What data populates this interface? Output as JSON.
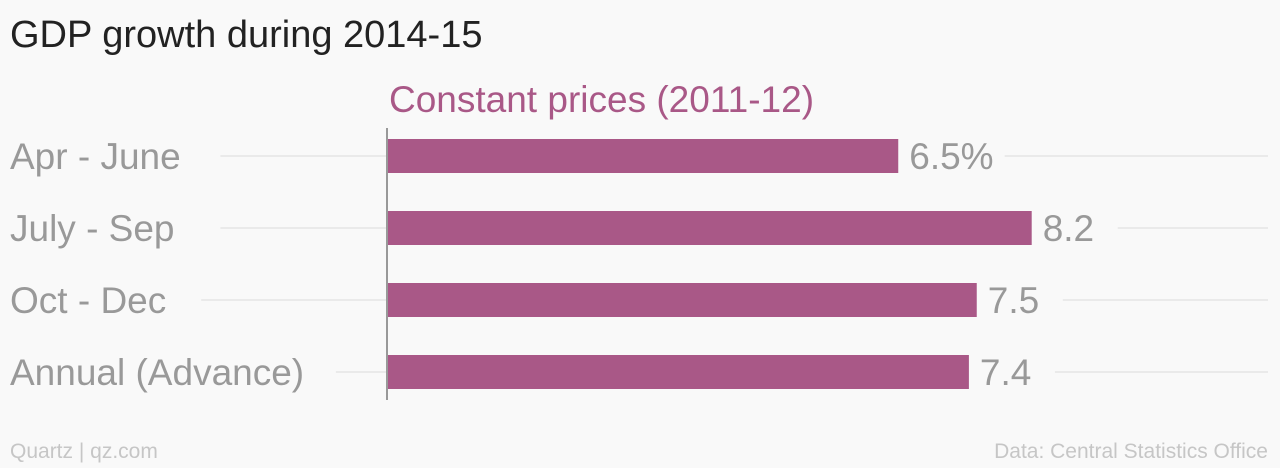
{
  "title": "GDP growth during 2014-15",
  "footer": {
    "source_brand": "Quartz | qz.com",
    "data_source": "Data: Central Statistics Office"
  },
  "colors": {
    "bar": "#a95887",
    "series_label": "#a95887",
    "category_text": "#999999",
    "value_text": "#999999",
    "gridline": "#e6e6e6",
    "axis": "#999999"
  },
  "chart_data": {
    "type": "bar",
    "orientation": "horizontal",
    "categories": [
      "Apr - June",
      "July - Sep",
      "Oct - Dec",
      "Annual (Advance)"
    ],
    "series": [
      {
        "name": "Constant prices (2011-12)",
        "values": [
          6.5,
          8.2,
          7.5,
          7.4
        ]
      }
    ],
    "value_labels": [
      "6.5%",
      "8.2",
      "7.5",
      "7.4"
    ],
    "grid": true,
    "legend": "top"
  }
}
